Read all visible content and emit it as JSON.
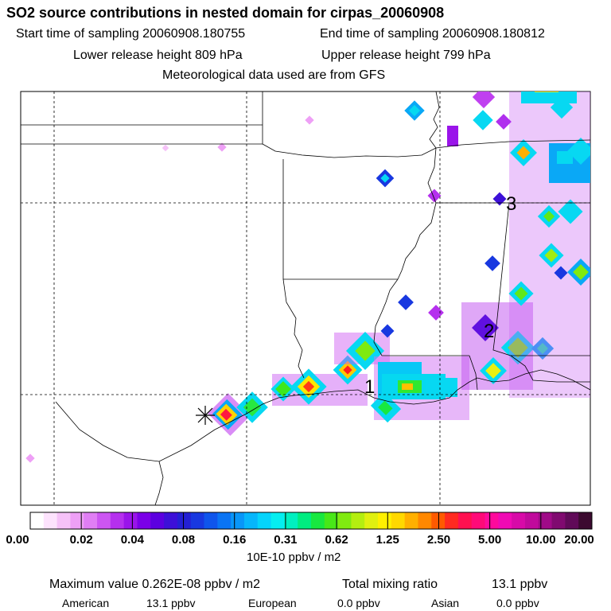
{
  "title": "SO2 source contributions in nested domain for cirpas_20060908",
  "header": {
    "start_time": "Start time of sampling 20060908.180755",
    "end_time": "End time of sampling 20060908.180812",
    "lower_height": "Lower release height  809 hPa",
    "upper_height": "Upper release height  799 hPa",
    "met_data": "Meteorological data used are from GFS"
  },
  "map": {
    "markers": [
      "1",
      "2",
      "3"
    ],
    "source_symbol": "asterisk-icon"
  },
  "colorbar": {
    "labels": [
      "0.00",
      "0.02",
      "0.04",
      "0.08",
      "0.16",
      "0.31",
      "0.62",
      "1.25",
      "2.50",
      "5.00",
      "10.00",
      "20.00"
    ],
    "colors": [
      "#ffffff",
      "#fde3fd",
      "#f6c2f8",
      "#eea0f6",
      "#e07ef4",
      "#cc55f2",
      "#b530ee",
      "#9a14ea",
      "#7b00e8",
      "#5c00e0",
      "#3d10d8",
      "#2420d4",
      "#1838e0",
      "#0f55ec",
      "#0a74f4",
      "#0896f8",
      "#06b6fb",
      "#05d4fb",
      "#05eef0",
      "#00f0c0",
      "#00ec80",
      "#18e840",
      "#48e818",
      "#80ea10",
      "#b4ee10",
      "#e0f010",
      "#fff000",
      "#ffd800",
      "#ffb000",
      "#ff8800",
      "#ff5a00",
      "#ff2a20",
      "#ff1050",
      "#ff0a78",
      "#ff0a9c",
      "#f00ab4",
      "#d80aa8",
      "#c00a9c",
      "#a00a88",
      "#800a70",
      "#600a58",
      "#3c0a30"
    ],
    "unit": "10E-10 ppbv / m2"
  },
  "footer": {
    "max_label": "Maximum value  0.262E-08 ppbv / m2",
    "total_label": "Total mixing ratio",
    "total_value": "13.1 ppbv",
    "american_label": "American",
    "american_value": "13.1 ppbv",
    "european_label": "European",
    "european_value": "0.0 ppbv",
    "asian_label": "Asian",
    "asian_value": "0.0 ppbv"
  }
}
